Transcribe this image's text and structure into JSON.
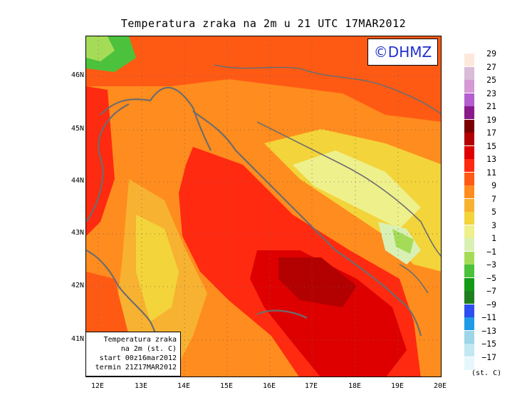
{
  "title": "Temperatura zraka na 2m u 21 UTC 17MAR2012",
  "logo_text": "©DHMZ",
  "info_box": {
    "line1": "Temperatura zraka",
    "line2": "na 2m (st. C)",
    "line3": "start 00z16mar2012",
    "line4": "termin 21Z17MAR2012"
  },
  "lat_labels": [
    "46N",
    "45N",
    "44N",
    "43N",
    "42N",
    "41N"
  ],
  "lon_labels": [
    "12E",
    "13E",
    "14E",
    "15E",
    "16E",
    "17E",
    "18E",
    "19E",
    "20E"
  ],
  "legend": {
    "unit": "(st. C)",
    "labels": [
      "29",
      "27",
      "25",
      "23",
      "21",
      "19",
      "17",
      "15",
      "13",
      "11",
      "9",
      "7",
      "5",
      "3",
      "1",
      "−1",
      "−3",
      "−5",
      "−7",
      "−9",
      "−11",
      "−13",
      "−15",
      "−17"
    ],
    "colors": [
      "#fde9dc",
      "#d8bcd8",
      "#d59ad4",
      "#b55ed0",
      "#8a1a8a",
      "#7a0000",
      "#b30000",
      "#de0000",
      "#ff2a10",
      "#ff5a14",
      "#ff8c1e",
      "#f7b231",
      "#f3d43a",
      "#eef08c",
      "#d9f0b5",
      "#a5dc57",
      "#4cc23c",
      "#139b16",
      "#1f7f1f",
      "#2d4ff0",
      "#1e9ae6",
      "#9cd6e8",
      "#c2e8f2",
      "#e6f7fb"
    ]
  }
}
